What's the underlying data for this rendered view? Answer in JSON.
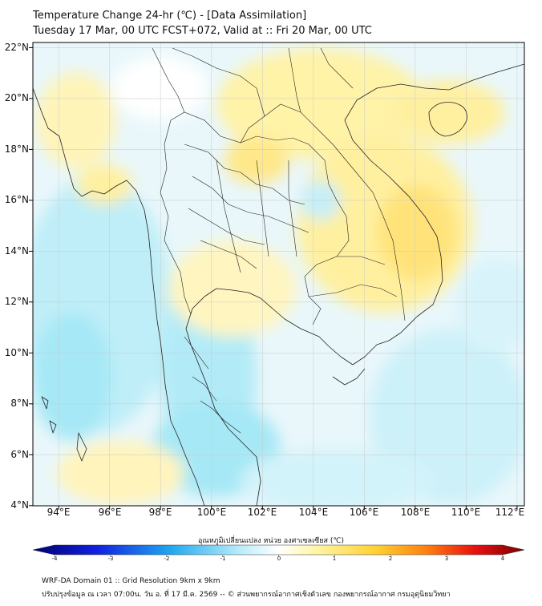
{
  "title": {
    "line1": "Temperature Change 24-hr (℃) - [Data Assimilation]",
    "line2": "Tuesday 17 Mar, 00 UTC FCST+072, Valid at :: Fri 20 Mar, 00 UTC"
  },
  "map": {
    "lat_labels": [
      "22°N",
      "20°N",
      "18°N",
      "16°N",
      "14°N",
      "12°N",
      "10°N",
      "8°N",
      "6°N",
      "4°N"
    ],
    "lon_labels": [
      "94°E",
      "96°E",
      "98°E",
      "100°E",
      "102°E",
      "104°E",
      "106°E",
      "108°E",
      "110°E",
      "112°E"
    ],
    "extent": {
      "lon_min": 93,
      "lon_max": 112.3,
      "lat_min": 4,
      "lat_max": 22.2
    }
  },
  "colorbar": {
    "title": "อุณหภูมิเปลี่ยนแปลง หน่วย องศาเซลเซียส (℃)",
    "min": -4,
    "max": 4,
    "tick_labels": [
      "-4",
      "-3",
      "-2",
      "-1",
      "0",
      "1",
      "2",
      "3",
      "4"
    ]
  },
  "footer": {
    "line1": "WRF-DA Domain 01 :: Grid Resolution 9km x 9km",
    "line2": "ปรับปรุงข้อมูล ณ เวลา 07:00น. วัน อ. ที่ 17 มี.ค. 2569 -- © ส่วนพยากรณ์อากาศเชิงตัวเลข กองพยากรณ์อากาศ กรมอุตุนิยมวิทยา"
  },
  "colors": {
    "yellow": "#ffeb84",
    "pale_yellow": "#fff6c4",
    "cyan": "#a6e8f6",
    "pale_cyan": "#d8f4fa",
    "orange": "#ffc640",
    "border": "#222222"
  }
}
